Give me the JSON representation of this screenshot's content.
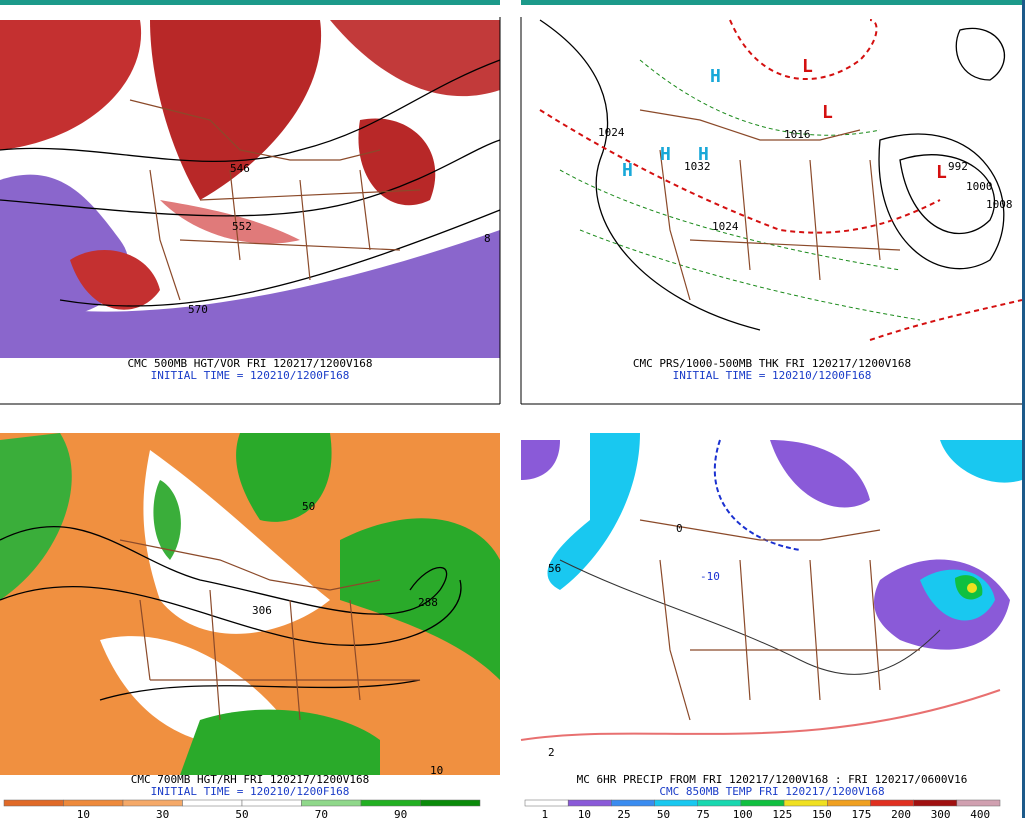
{
  "panels": [
    {
      "caption": "CMC 500MB HGT/VOR FRI 120217/1200V168",
      "initial": "INITIAL TIME = 120210/1200F168",
      "labels": [
        "546",
        "570",
        "552",
        "8"
      ]
    },
    {
      "caption": "CMC PRS/1000-500MB THK FRI 120217/1200V168",
      "initial": "INITIAL TIME = 120210/1200F168",
      "labels": [
        "H",
        "H",
        "H",
        "H",
        "L",
        "L",
        "L",
        "1032",
        "1024",
        "1016",
        "992",
        "1000",
        "1008",
        "1024"
      ]
    },
    {
      "caption": "CMC 700MB HGT/RH FRI 120217/1200V168",
      "initial": "INITIAL TIME = 120210/1200F168",
      "colorbar": {
        "colors": [
          "#e06a28",
          "#ee8a3c",
          "#f5a968",
          "#ffffff",
          "#ffffff",
          "#8fd88a",
          "#22b022",
          "#0a8a0a"
        ],
        "ticks": [
          10,
          30,
          50,
          70,
          90
        ]
      },
      "labels": [
        "306",
        "288",
        "50",
        "10"
      ]
    },
    {
      "caption": "MC 6HR PRECIP FROM FRI 120217/1200V168 : FRI 120217/0600V16",
      "initial": "CMC 850MB TEMP FRI 120217/1200V168",
      "colorbar": {
        "colors": [
          "#ffffff",
          "#8a5ad8",
          "#3a8cf0",
          "#19c8f0",
          "#18d8b0",
          "#10c040",
          "#f0e020",
          "#f0a020",
          "#e03020",
          "#a01010",
          "#d0a0b0"
        ],
        "ticks": [
          1,
          10,
          25,
          50,
          75,
          100,
          125,
          150,
          175,
          200,
          300,
          400
        ]
      },
      "labels": [
        "-10",
        "56",
        "2",
        "0"
      ]
    }
  ]
}
